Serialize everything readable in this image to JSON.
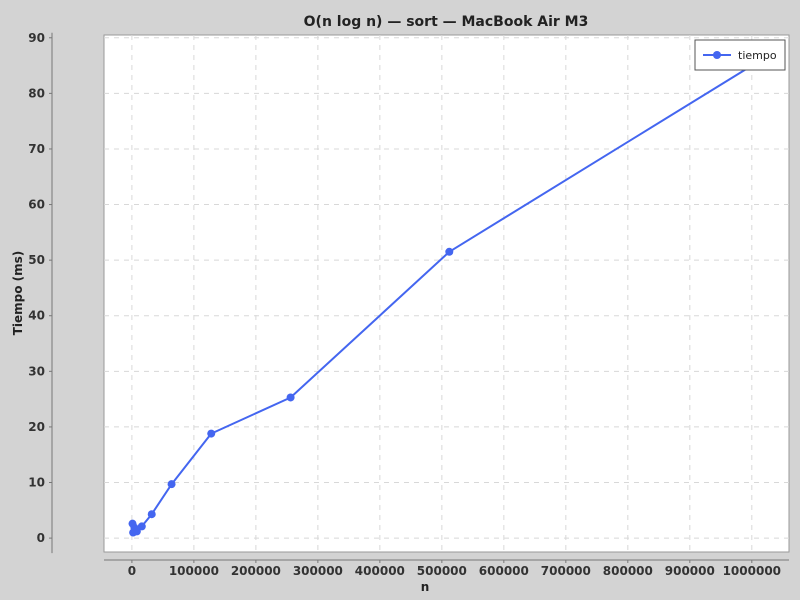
{
  "chart_data": {
    "type": "line",
    "title": "O(n log n) — sort — MacBook Air M3",
    "xlabel": "n",
    "ylabel": "Tiempo (ms)",
    "xlim": [
      -45000,
      1060000
    ],
    "ylim": [
      -2.5,
      90.5
    ],
    "x_ticks": [
      0,
      100000,
      200000,
      300000,
      400000,
      500000,
      600000,
      700000,
      800000,
      900000,
      1000000
    ],
    "y_ticks": [
      0,
      10,
      20,
      30,
      40,
      50,
      60,
      70,
      80,
      90
    ],
    "grid": true,
    "legend_position": "top-right",
    "series": [
      {
        "name": "tiempo",
        "color": "#4466f0",
        "x": [
          1000,
          2000,
          4000,
          8000,
          16000,
          32000,
          64000,
          128000,
          256000,
          512000,
          1000000
        ],
        "y": [
          2.6,
          1.0,
          1.9,
          1.2,
          2.1,
          4.3,
          9.7,
          18.8,
          25.3,
          51.5,
          85.0
        ]
      }
    ]
  }
}
